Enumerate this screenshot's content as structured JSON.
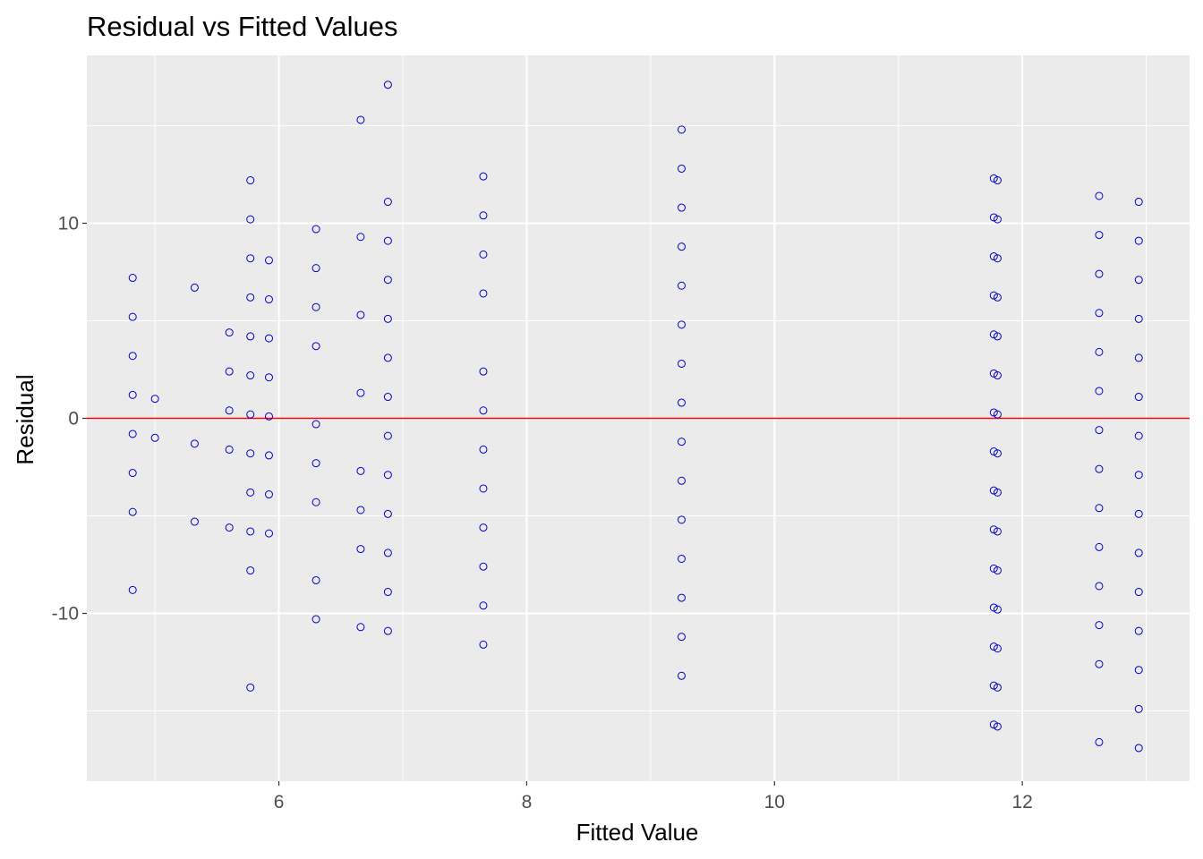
{
  "chart_data": {
    "type": "scatter",
    "title": "Residual vs Fitted Values",
    "xlabel": "Fitted Value",
    "ylabel": "Residual",
    "xlim": [
      4.45,
      13.35
    ],
    "ylim": [
      -18.6,
      18.6
    ],
    "x_ticks": [
      6,
      8,
      10,
      12
    ],
    "x_tick_labels": [
      "6",
      "8",
      "10",
      "12"
    ],
    "y_ticks": [
      -10,
      0,
      10
    ],
    "y_tick_labels": [
      "-10",
      "0",
      "10"
    ],
    "grid": true,
    "legend": "none",
    "point_color": "#0000CD",
    "reference_line": {
      "y": 0,
      "color": "#FF0000"
    },
    "panel_background": "#EBEBEB",
    "grid_color": "#FFFFFF",
    "groups": [
      {
        "x": 4.82,
        "y": [
          7.2,
          5.2,
          3.2,
          1.2,
          -0.8,
          -2.8,
          -4.8,
          -8.8
        ]
      },
      {
        "x": 5.0,
        "y": [
          1.0,
          -1.0
        ]
      },
      {
        "x": 5.32,
        "y": [
          6.7,
          -1.3,
          -5.3
        ]
      },
      {
        "x": 5.6,
        "y": [
          4.4,
          2.4,
          0.4,
          -1.6,
          -5.6
        ]
      },
      {
        "x": 5.77,
        "y": [
          12.2,
          10.2,
          8.2,
          6.2,
          4.2,
          2.2,
          0.2,
          -1.8,
          -3.8,
          -5.8,
          -7.8,
          -13.8
        ]
      },
      {
        "x": 5.92,
        "y": [
          8.1,
          6.1,
          4.1,
          2.1,
          0.1,
          -1.9,
          -3.9,
          -5.9
        ]
      },
      {
        "x": 6.3,
        "y": [
          9.7,
          7.7,
          5.7,
          3.7,
          -0.3,
          -2.3,
          -4.3,
          -8.3,
          -10.3
        ]
      },
      {
        "x": 6.66,
        "y": [
          15.3,
          9.3,
          5.3,
          1.3,
          -2.7,
          -4.7,
          -6.7,
          -10.7
        ]
      },
      {
        "x": 6.88,
        "y": [
          17.1,
          11.1,
          9.1,
          7.1,
          5.1,
          3.1,
          1.1,
          -0.9,
          -2.9,
          -4.9,
          -6.9,
          -8.9,
          -10.9
        ]
      },
      {
        "x": 7.65,
        "y": [
          12.4,
          10.4,
          8.4,
          6.4,
          2.4,
          0.4,
          -1.6,
          -3.6,
          -5.6,
          -7.6,
          -9.6,
          -11.6
        ]
      },
      {
        "x": 9.25,
        "y": [
          14.8,
          12.8,
          10.8,
          8.8,
          6.8,
          4.8,
          2.8,
          0.8,
          -1.2,
          -3.2,
          -5.2,
          -7.2,
          -9.2,
          -11.2,
          -13.2
        ]
      },
      {
        "x": 11.77,
        "y": [
          12.3,
          10.3,
          8.3,
          6.3,
          4.3,
          2.3,
          0.3,
          -1.7,
          -3.7,
          -5.7,
          -7.7,
          -9.7,
          -11.7,
          -13.7,
          -15.7
        ]
      },
      {
        "x": 11.8,
        "y": [
          12.2,
          10.2,
          8.2,
          6.2,
          4.2,
          2.2,
          0.2,
          -1.8,
          -3.8,
          -5.8,
          -7.8,
          -9.8,
          -11.8,
          -13.8,
          -15.8
        ]
      },
      {
        "x": 12.62,
        "y": [
          11.4,
          9.4,
          7.4,
          5.4,
          3.4,
          1.4,
          -0.6,
          -2.6,
          -4.6,
          -6.6,
          -8.6,
          -10.6,
          -12.6,
          -16.6
        ]
      },
      {
        "x": 12.94,
        "y": [
          11.1,
          9.1,
          7.1,
          5.1,
          3.1,
          1.1,
          -0.9,
          -2.9,
          -4.9,
          -6.9,
          -8.9,
          -10.9,
          -12.9,
          -14.9,
          -16.9
        ]
      }
    ]
  }
}
